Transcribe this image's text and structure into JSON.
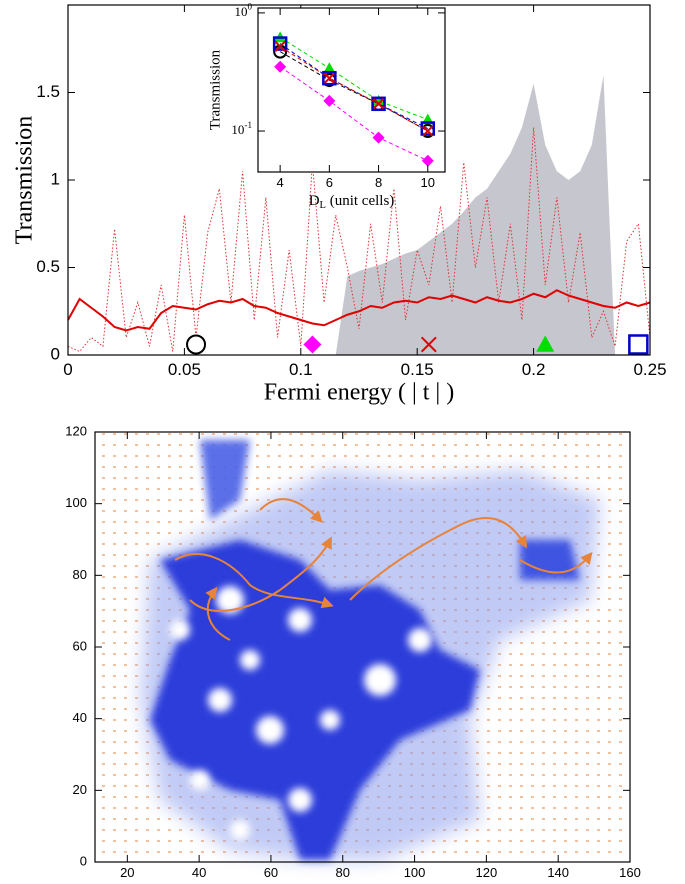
{
  "chart_data": [
    {
      "type": "line",
      "ylabel": "Transmission",
      "xlabel": "Fermi energy ( | t | )",
      "xlim": [
        0,
        0.25
      ],
      "ylim": [
        0,
        2
      ],
      "xticks": [
        0,
        0.05,
        0.1,
        0.15,
        0.2,
        0.25
      ],
      "yticks": [
        0,
        0.5,
        1,
        1.5
      ],
      "x": [
        0,
        0.005,
        0.01,
        0.015,
        0.02,
        0.025,
        0.03,
        0.035,
        0.04,
        0.045,
        0.05,
        0.055,
        0.06,
        0.065,
        0.07,
        0.075,
        0.08,
        0.085,
        0.09,
        0.095,
        0.1,
        0.105,
        0.11,
        0.115,
        0.12,
        0.125,
        0.13,
        0.135,
        0.14,
        0.145,
        0.15,
        0.155,
        0.16,
        0.165,
        0.17,
        0.175,
        0.18,
        0.185,
        0.19,
        0.195,
        0.2,
        0.205,
        0.21,
        0.215,
        0.22,
        0.225,
        0.23,
        0.235,
        0.24,
        0.245,
        0.25
      ],
      "series": [
        {
          "style": "area",
          "color": "#c6c6ce",
          "values": [
            0,
            0,
            0,
            0,
            0,
            0,
            0,
            0,
            0,
            0,
            0,
            0,
            0,
            0,
            0,
            0,
            0,
            0,
            0,
            0,
            0,
            0,
            0,
            0,
            0.45,
            0.48,
            0.5,
            0.52,
            0.55,
            0.58,
            0.6,
            0.65,
            0.7,
            0.75,
            0.82,
            0.9,
            0.95,
            1.05,
            1.15,
            1.3,
            1.55,
            1.2,
            1.05,
            1.0,
            1.05,
            1.2,
            1.6,
            0,
            0,
            0,
            0
          ]
        },
        {
          "style": "dotted",
          "color": "#e03030",
          "values": [
            0.05,
            0.02,
            0.1,
            0.05,
            0.72,
            0.1,
            0.3,
            0.05,
            0.4,
            0.02,
            0.8,
            0.1,
            0.7,
            0.95,
            0.3,
            1.05,
            0.2,
            0.9,
            0.1,
            0.6,
            0.05,
            1.1,
            0.3,
            0.8,
            0.5,
            0.15,
            0.75,
            0.3,
            0.95,
            0.2,
            0.6,
            0.4,
            0.85,
            0.3,
            1.1,
            0.5,
            0.9,
            0.3,
            0.75,
            0.2,
            1.3,
            0.4,
            0.9,
            0.3,
            0.7,
            0.1,
            0.25,
            0.05,
            0.65,
            0.75,
            0.1
          ]
        },
        {
          "style": "solid",
          "color": "#e00000",
          "values": [
            0.2,
            0.32,
            0.27,
            0.22,
            0.16,
            0.14,
            0.16,
            0.15,
            0.24,
            0.28,
            0.27,
            0.26,
            0.29,
            0.31,
            0.3,
            0.32,
            0.28,
            0.27,
            0.24,
            0.22,
            0.2,
            0.18,
            0.17,
            0.2,
            0.23,
            0.25,
            0.28,
            0.27,
            0.3,
            0.31,
            0.3,
            0.33,
            0.32,
            0.34,
            0.32,
            0.3,
            0.33,
            0.31,
            0.3,
            0.32,
            0.35,
            0.33,
            0.37,
            0.34,
            0.32,
            0.3,
            0.28,
            0.27,
            0.3,
            0.28,
            0.3
          ]
        }
      ],
      "markers": {
        "x": [
          0.055,
          0.105,
          0.155,
          0.205,
          0.245
        ],
        "y": [
          0.06,
          0.06,
          0.06,
          0.06,
          0.06
        ],
        "shapes": [
          "circle",
          "diamond",
          "x",
          "triangle",
          "square"
        ],
        "colors": [
          "#000000",
          "#ff00ff",
          "#e00000",
          "#00dd00",
          "#0000cc"
        ]
      }
    },
    {
      "type": "line",
      "log_y": true,
      "ylabel": "Transmission",
      "xlabel": {
        "main": "D",
        "sub": "L",
        "rest": " (unit cells)"
      },
      "xlim": [
        3.1,
        10.7
      ],
      "ylim": [
        0.045,
        1.1
      ],
      "xticks": [
        4,
        6,
        8,
        10
      ],
      "yticks": [
        {
          "value": 1,
          "label": "10",
          "exponent": "0"
        },
        {
          "value": 0.1,
          "label": "10",
          "exponent": "-1"
        }
      ],
      "x": [
        4,
        6,
        8,
        10
      ],
      "series": [
        {
          "style": "dashed",
          "marker": "triangle",
          "color": "#00dd00",
          "values": [
            0.62,
            0.34,
            0.18,
            0.125
          ]
        },
        {
          "style": "dashed",
          "marker": "circle",
          "color": "#000000",
          "values": [
            0.47,
            0.27,
            0.17,
            0.1
          ]
        },
        {
          "style": "dashed",
          "marker": "square",
          "color": "#0000cc",
          "values": [
            0.55,
            0.28,
            0.17,
            0.105
          ]
        },
        {
          "style": "dashed",
          "marker": "x",
          "color": "#dd0000",
          "values": [
            0.52,
            0.28,
            0.17,
            0.1
          ]
        },
        {
          "style": "dashed",
          "marker": "diamond",
          "color": "#ff00ff",
          "values": [
            0.35,
            0.18,
            0.088,
            0.056
          ]
        }
      ]
    },
    {
      "type": "image",
      "xlim": [
        11,
        160
      ],
      "ylim": [
        0,
        120
      ],
      "xticks": [
        20,
        40,
        60,
        80,
        100,
        120,
        140,
        160
      ],
      "yticks": [
        0,
        20,
        40,
        60,
        80,
        100,
        120
      ]
    }
  ]
}
